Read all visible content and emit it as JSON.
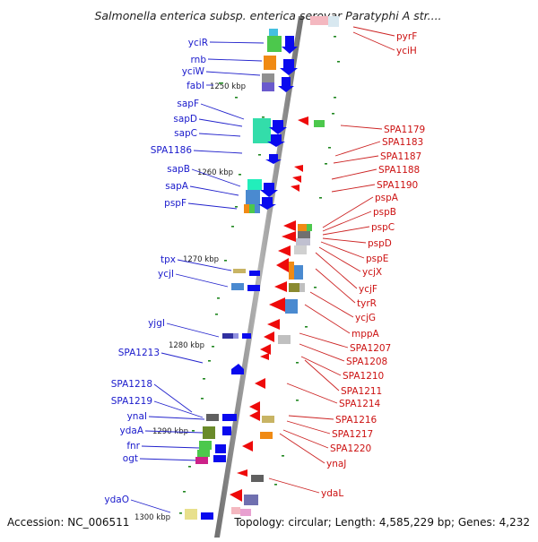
{
  "title": "Salmonella enterica subsp. enterica serovar Paratyphi A str....",
  "footer": {
    "accession": "Accession: NC_006511",
    "topology": "Topology: circular; Length: 4,585,229 bp; Genes: 4,232"
  },
  "ticks": [
    "1250 kbp",
    "1260 kbp",
    "1270 kbp",
    "1280 kbp",
    "1290 kbp",
    "1300 kbp"
  ],
  "left_genes": [
    "yciR",
    "rnb",
    "yciW",
    "fabI",
    "sapF",
    "sapD",
    "sapC",
    "SPA1186",
    "sapB",
    "sapA",
    "pspF",
    "tpx",
    "ycjI",
    "yjgI",
    "SPA1213",
    "SPA1218",
    "SPA1219",
    "ynaI",
    "ydaA",
    "fnr",
    "ogt",
    "ydaO"
  ],
  "right_genes": [
    "pyrF",
    "yciH",
    "SPA1179",
    "SPA1183",
    "SPA1187",
    "SPA1188",
    "SPA1190",
    "pspA",
    "pspB",
    "pspC",
    "pspD",
    "pspE",
    "ycjX",
    "ycjF",
    "tyrR",
    "ycjG",
    "mppA",
    "SPA1207",
    "SPA1208",
    "SPA1210",
    "SPA1211",
    "SPA1214",
    "SPA1216",
    "SPA1217",
    "SPA1220",
    "ynaJ",
    "ydaL"
  ],
  "colors": {
    "forward_strand": "#0000ee",
    "reverse_strand": "#ee0000",
    "left_label": "#1a1acc",
    "right_label": "#cc1111",
    "rna_tick": "#228822",
    "backbone": "#888888"
  }
}
